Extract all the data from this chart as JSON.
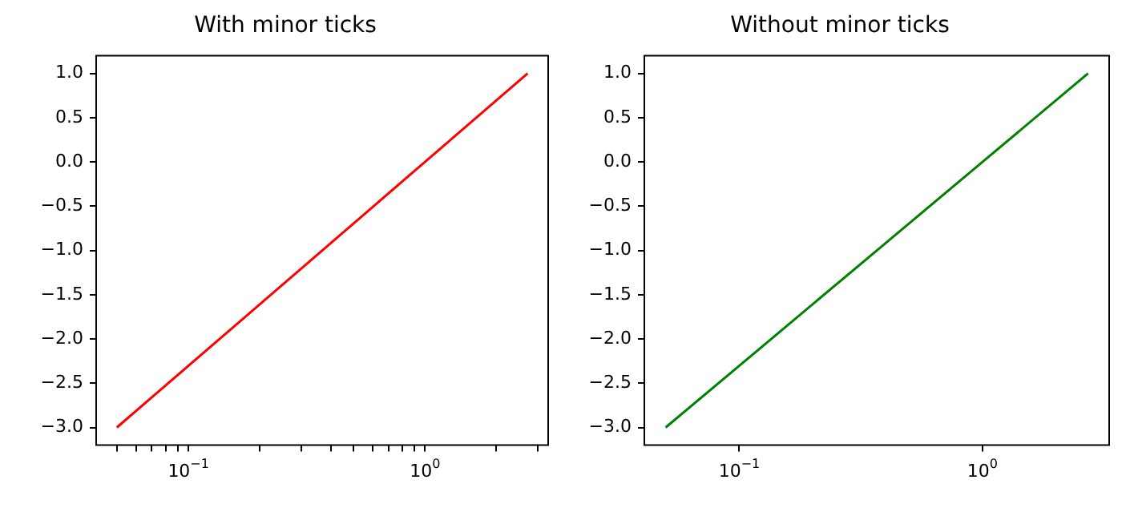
{
  "chart_data": [
    {
      "type": "line",
      "title": "With minor ticks",
      "log": "x",
      "marker": "none",
      "xlim": [
        0.0407,
        3.32
      ],
      "ylim": [
        -3.2,
        1.2
      ],
      "xticks": [
        {
          "value": 0.05,
          "label": null
        },
        {
          "value": 0.06,
          "label": null
        },
        {
          "value": 0.07,
          "label": null
        },
        {
          "value": 0.08,
          "label": null
        },
        {
          "value": 0.09,
          "label": null
        },
        {
          "value": 0.1,
          "label": "10$^{−1}$"
        },
        {
          "value": 0.2,
          "label": null
        },
        {
          "value": 0.3,
          "label": null
        },
        {
          "value": 0.4,
          "label": null
        },
        {
          "value": 0.5,
          "label": null
        },
        {
          "value": 0.6,
          "label": null
        },
        {
          "value": 0.7,
          "label": null
        },
        {
          "value": 0.8,
          "label": null
        },
        {
          "value": 0.9,
          "label": null
        },
        {
          "value": 1,
          "label": "10$^{0}$"
        },
        {
          "value": 2,
          "label": null
        },
        {
          "value": 3,
          "label": null
        }
      ],
      "yticks": [
        {
          "value": -3,
          "label": "−3.0"
        },
        {
          "value": -2.5,
          "label": "−2.5"
        },
        {
          "value": -2,
          "label": "−2.0"
        },
        {
          "value": -1.5,
          "label": "−1.5"
        },
        {
          "value": -1,
          "label": "−1.0"
        },
        {
          "value": -0.5,
          "label": "−0.5"
        },
        {
          "value": 0,
          "label": "0.0"
        },
        {
          "value": 0.5,
          "label": "0.5"
        },
        {
          "value": 1,
          "label": "1.0"
        }
      ],
      "series": [
        {
          "color": "#ff0000",
          "x": [
            0.0498,
            0.1353,
            0.3679,
            1,
            2.718
          ],
          "values": [
            -3,
            -2,
            -1,
            0,
            1
          ]
        }
      ]
    },
    {
      "type": "line",
      "title": "Without minor ticks",
      "log": "x",
      "marker": "none",
      "xlim": [
        0.0407,
        3.32
      ],
      "ylim": [
        -3.2,
        1.2
      ],
      "xticks": [
        {
          "value": 0.1,
          "label": "10$^{−1}$"
        },
        {
          "value": 1,
          "label": "10$^{0}$"
        }
      ],
      "yticks": [
        {
          "value": -3,
          "label": "−3.0"
        },
        {
          "value": -2.5,
          "label": "−2.5"
        },
        {
          "value": -2,
          "label": "−2.0"
        },
        {
          "value": -1.5,
          "label": "−1.5"
        },
        {
          "value": -1,
          "label": "−1.0"
        },
        {
          "value": -0.5,
          "label": "−0.5"
        },
        {
          "value": 0,
          "label": "0.0"
        },
        {
          "value": 0.5,
          "label": "0.5"
        },
        {
          "value": 1,
          "label": "1.0"
        }
      ],
      "series": [
        {
          "color": "#008000",
          "x": [
            0.0498,
            0.1353,
            0.3679,
            1,
            2.718
          ],
          "values": [
            -3,
            -2,
            -1,
            0,
            1
          ]
        }
      ]
    }
  ]
}
